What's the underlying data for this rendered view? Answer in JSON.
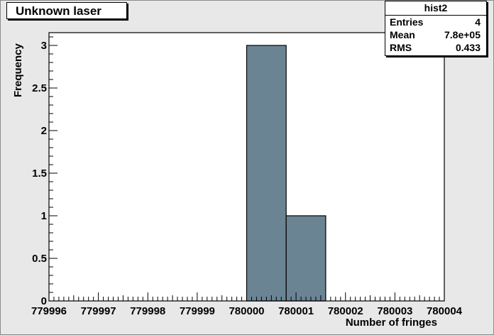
{
  "chart_data": {
    "type": "bar",
    "title": "Unknown laser",
    "xlabel": "Number of fringes",
    "ylabel": "Frequency",
    "xlim": [
      779996,
      780004
    ],
    "ylim": [
      0,
      3.15
    ],
    "bins": [
      {
        "x_low": 780000,
        "x_high": 780000.8,
        "value": 3
      },
      {
        "x_low": 780000.8,
        "x_high": 780001.6,
        "value": 1
      }
    ],
    "x_ticks": [
      "779996",
      "779997",
      "779998",
      "779999",
      "780000",
      "780001",
      "780002",
      "780003",
      "780004"
    ],
    "y_ticks": [
      "0",
      "0.5",
      "1",
      "1.5",
      "2",
      "2.5",
      "3"
    ],
    "bar_color": "#6b8494",
    "stats": {
      "name": "hist2",
      "entries_label": "Entries",
      "entries": "4",
      "mean_label": "Mean",
      "mean": "7.8e+05",
      "rms_label": "RMS",
      "rms": "0.433"
    }
  }
}
